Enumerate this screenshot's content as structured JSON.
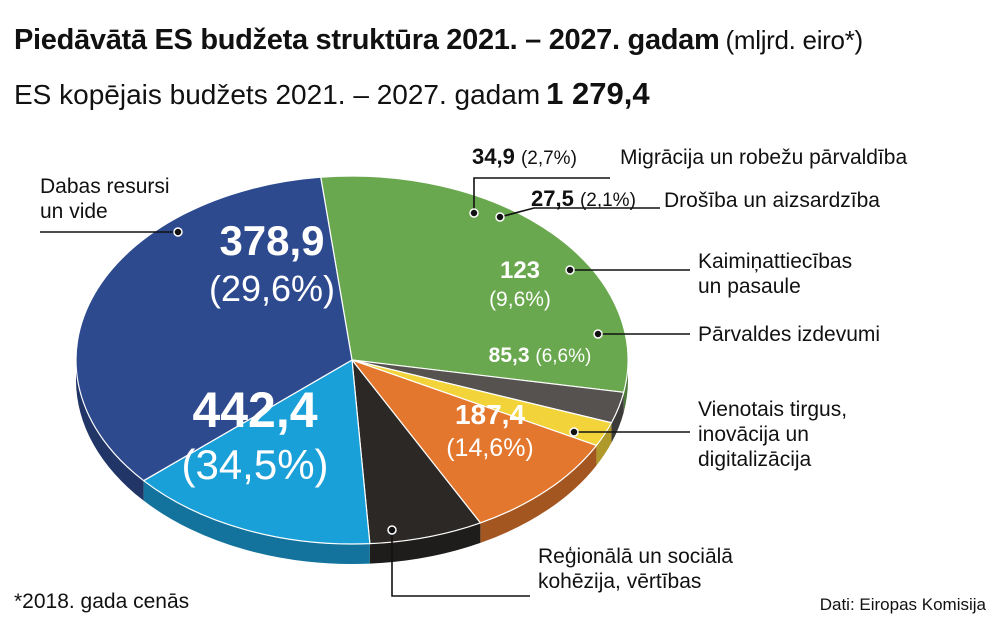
{
  "title": "Piedāvātā ES budžeta struktūra 2021. – 2027. gadam",
  "title_unit": "(mljrd. eiro*)",
  "subtitle": "ES kopējais budžets 2021. – 2027. gadam",
  "total": "1 279,4",
  "footnote": "*2018. gada cenās",
  "source": "Dati: Eiropas Komisija",
  "chart_data": {
    "type": "pie",
    "unit": "mljrd. eiro",
    "slices": [
      {
        "label": "Dabas resursi un vide",
        "label_lines": [
          "Dabas resursi",
          "un vide"
        ],
        "value": 378.9,
        "value_text": "378,9",
        "percent": 29.6,
        "percent_text": "(29,6%)",
        "color": "#6aa84f"
      },
      {
        "label": "Migrācija un robežu pārvaldība",
        "label_lines": [
          "Migrācija un robežu pārvaldība"
        ],
        "value": 34.9,
        "value_text": "34,9",
        "percent": 2.7,
        "percent_text": "(2,7%)",
        "color": "#55524f"
      },
      {
        "label": "Drošība un aizsardzība",
        "label_lines": [
          "Drošība un aizsardzība"
        ],
        "value": 27.5,
        "value_text": "27,5",
        "percent": 2.1,
        "percent_text": "(2,1%)",
        "color": "#f2d43a"
      },
      {
        "label": "Kaimiņattiecības un pasaule",
        "label_lines": [
          "Kaimiņattiecības",
          "un pasaule"
        ],
        "value": 123,
        "value_text": "123",
        "percent": 9.6,
        "percent_text": "(9,6%)",
        "color": "#e4772e"
      },
      {
        "label": "Pārvaldes izdevumi",
        "label_lines": [
          "Pārvaldes izdevumi"
        ],
        "value": 85.3,
        "value_text": "85,3",
        "percent": 6.6,
        "percent_text": "(6,6%)",
        "color": "#2b2826"
      },
      {
        "label": "Vienotais tirgus, inovācija un digitalizācija",
        "label_lines": [
          "Vienotais tirgus,",
          "inovācija un",
          "digitalizācija"
        ],
        "value": 187.4,
        "value_text": "187,4",
        "percent": 14.6,
        "percent_text": "(14,6%)",
        "color": "#1aa0d8"
      },
      {
        "label": "Reģionālā un sociālā kohēzija, vērtības",
        "label_lines": [
          "Reģionālā un sociālā",
          "kohēzija, vērtības"
        ],
        "value": 442.4,
        "value_text": "442,4",
        "percent": 34.5,
        "percent_text": "(34,5%)",
        "color": "#2e4a8f"
      }
    ]
  }
}
